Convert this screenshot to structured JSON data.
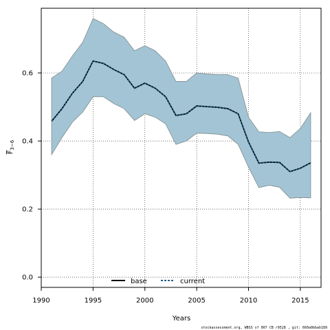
{
  "chart_data": {
    "type": "line",
    "title": "",
    "xlabel": "Years",
    "ylabel_main": "F",
    "ylabel_sub": "3−6",
    "xlim": [
      1990,
      2017
    ],
    "ylim": [
      -0.03,
      0.79
    ],
    "xticks": [
      1990,
      1995,
      2000,
      2005,
      2010,
      2015
    ],
    "yticks": [
      0.0,
      0.2,
      0.4,
      0.6
    ],
    "ytick_labels": [
      "0.0",
      "0.2",
      "0.4",
      "0.6"
    ],
    "grid": true,
    "legend_position": "bottom-center",
    "x": [
      1991,
      1992,
      1993,
      1994,
      1995,
      1996,
      1997,
      1998,
      1999,
      2000,
      2001,
      2002,
      2003,
      2004,
      2005,
      2006,
      2007,
      2008,
      2009,
      2010,
      2011,
      2012,
      2013,
      2014,
      2015,
      2016
    ],
    "band": {
      "upper": [
        0.585,
        0.605,
        0.65,
        0.69,
        0.76,
        0.745,
        0.72,
        0.705,
        0.665,
        0.68,
        0.665,
        0.635,
        0.575,
        0.575,
        0.6,
        0.597,
        0.595,
        0.595,
        0.585,
        0.47,
        0.427,
        0.425,
        0.428,
        0.41,
        0.437,
        0.483
      ],
      "lower": [
        0.36,
        0.41,
        0.455,
        0.485,
        0.53,
        0.53,
        0.51,
        0.495,
        0.46,
        0.48,
        0.47,
        0.45,
        0.39,
        0.4,
        0.423,
        0.422,
        0.42,
        0.415,
        0.39,
        0.323,
        0.263,
        0.27,
        0.264,
        0.232,
        0.234,
        0.233
      ],
      "fill": "#a3c4d4",
      "stroke": "#7f8c8d"
    },
    "series": [
      {
        "name": "base",
        "color": "#000000",
        "values": [
          0.458,
          0.495,
          0.54,
          0.575,
          0.635,
          0.628,
          0.61,
          0.595,
          0.555,
          0.57,
          0.555,
          0.53,
          0.475,
          0.48,
          0.503,
          0.501,
          0.499,
          0.495,
          0.48,
          0.397,
          0.335,
          0.338,
          0.337,
          0.31,
          0.32,
          0.336
        ]
      },
      {
        "name": "current",
        "color": "#1f5f86",
        "dashed": true,
        "values": [
          0.458,
          0.495,
          0.54,
          0.575,
          0.635,
          0.628,
          0.61,
          0.595,
          0.555,
          0.57,
          0.555,
          0.53,
          0.475,
          0.48,
          0.503,
          0.501,
          0.499,
          0.495,
          0.48,
          0.397,
          0.335,
          0.338,
          0.337,
          0.31,
          0.32,
          0.336
        ]
      }
    ]
  },
  "footer": {
    "text": "stockassessment.org, WBSS sf 007 CB r9528 , git: 660a0bbab189"
  }
}
